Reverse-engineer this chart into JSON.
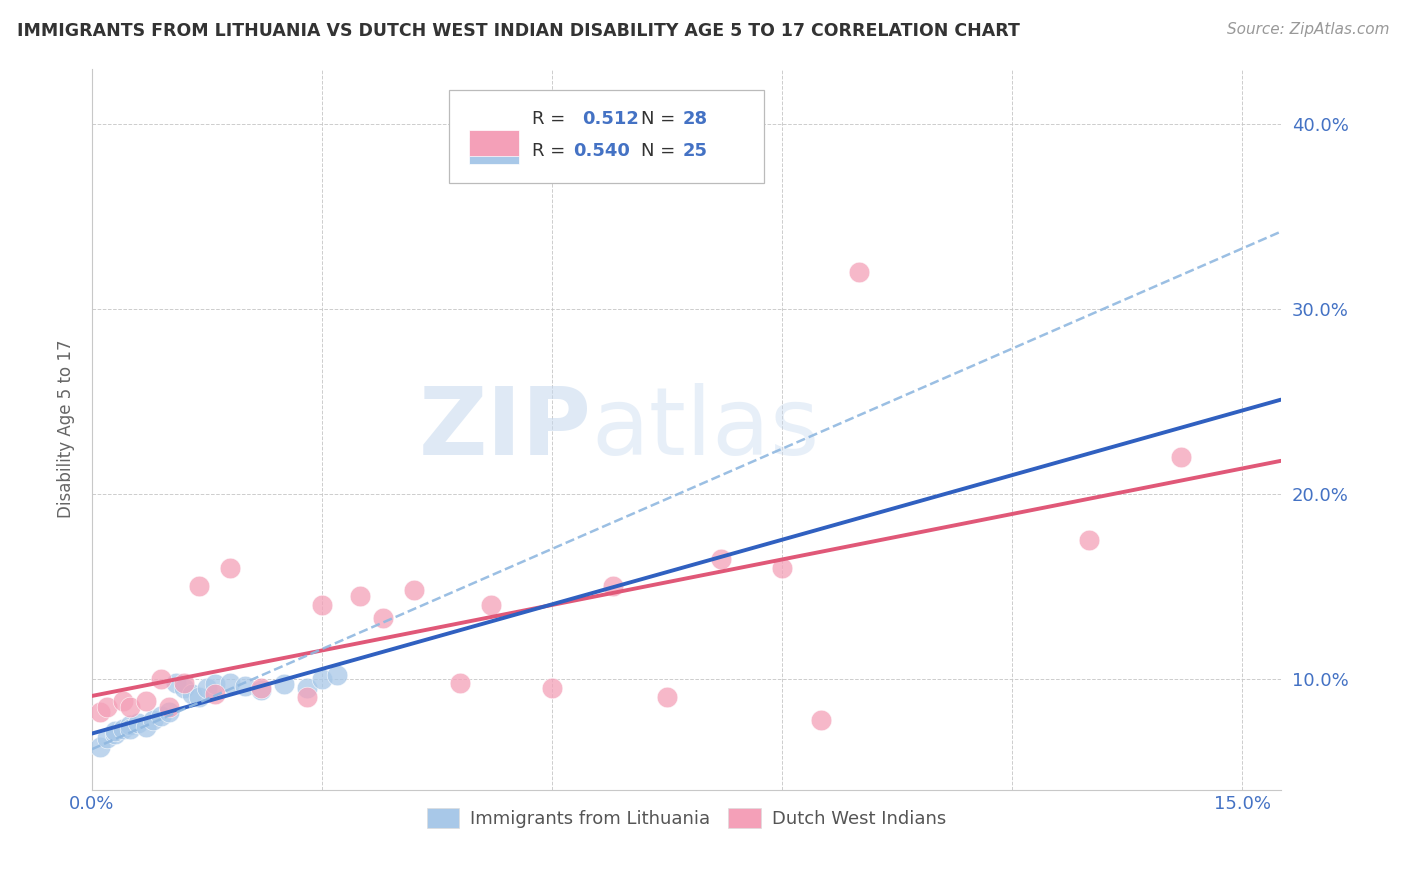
{
  "title": "IMMIGRANTS FROM LITHUANIA VS DUTCH WEST INDIAN DISABILITY AGE 5 TO 17 CORRELATION CHART",
  "source": "Source: ZipAtlas.com",
  "ylabel": "Disability Age 5 to 17",
  "xlim": [
    0.0,
    0.155
  ],
  "ylim": [
    0.04,
    0.43
  ],
  "xticks": [
    0.0,
    0.03,
    0.06,
    0.09,
    0.12,
    0.15
  ],
  "yticks": [
    0.1,
    0.2,
    0.3,
    0.4
  ],
  "blue_color": "#a8c8e8",
  "pink_color": "#f4a0b8",
  "blue_line_color": "#3060c0",
  "pink_line_color": "#e05878",
  "dashed_color": "#90b8e0",
  "axis_label_color": "#4472c4",
  "blue_x": [
    0.001,
    0.002,
    0.003,
    0.003,
    0.004,
    0.005,
    0.005,
    0.006,
    0.007,
    0.008,
    0.009,
    0.01,
    0.011,
    0.012,
    0.013,
    0.014,
    0.015,
    0.016,
    0.018,
    0.02,
    0.022,
    0.025,
    0.028,
    0.03,
    0.032
  ],
  "blue_y": [
    0.063,
    0.068,
    0.07,
    0.072,
    0.073,
    0.075,
    0.073,
    0.076,
    0.074,
    0.078,
    0.08,
    0.082,
    0.098,
    0.095,
    0.092,
    0.09,
    0.095,
    0.097,
    0.098,
    0.096,
    0.094,
    0.097,
    0.095,
    0.1,
    0.102
  ],
  "pink_x": [
    0.001,
    0.002,
    0.004,
    0.005,
    0.007,
    0.009,
    0.01,
    0.012,
    0.014,
    0.016,
    0.018,
    0.022,
    0.028,
    0.03,
    0.035,
    0.038,
    0.042,
    0.048,
    0.052,
    0.06,
    0.068,
    0.075,
    0.082,
    0.09,
    0.095,
    0.1,
    0.13,
    0.142
  ],
  "pink_y": [
    0.082,
    0.085,
    0.088,
    0.085,
    0.088,
    0.1,
    0.085,
    0.098,
    0.15,
    0.092,
    0.16,
    0.095,
    0.09,
    0.14,
    0.145,
    0.133,
    0.148,
    0.098,
    0.14,
    0.095,
    0.15,
    0.09,
    0.165,
    0.16,
    0.078,
    0.32,
    0.175,
    0.22
  ],
  "blue_slope": 1.1,
  "blue_intercept": 0.063,
  "pink_slope": 1.05,
  "pink_intercept": 0.082,
  "dashed_slope": 1.45,
  "dashed_intercept": 0.055
}
